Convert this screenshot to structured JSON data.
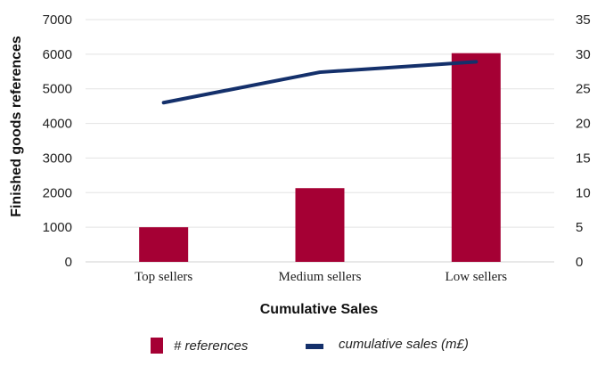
{
  "chart_data": {
    "type": "bar",
    "categories": [
      "Top sellers",
      "Medium sellers",
      "Low sellers"
    ],
    "series": [
      {
        "name": "# references",
        "type": "bar",
        "axis": "left",
        "values": [
          1000,
          2130,
          6030
        ],
        "color": "#A50034"
      },
      {
        "name": "cumulative sales (m£)",
        "type": "line",
        "axis": "right",
        "values": [
          23,
          27.4,
          28.9
        ],
        "color": "#14306B"
      }
    ],
    "xlabel": "Cumulative Sales",
    "ylabel": "Finished goods references",
    "ylim": [
      0,
      7000
    ],
    "y2lim": [
      0,
      35
    ],
    "yticks": [
      "0",
      "1000",
      "2000",
      "3000",
      "4000",
      "5000",
      "6000",
      "7000"
    ],
    "y2ticks": [
      "0",
      "5",
      "10",
      "15",
      "20",
      "25",
      "30",
      "35"
    ],
    "grid": true,
    "legend_position": "bottom"
  }
}
